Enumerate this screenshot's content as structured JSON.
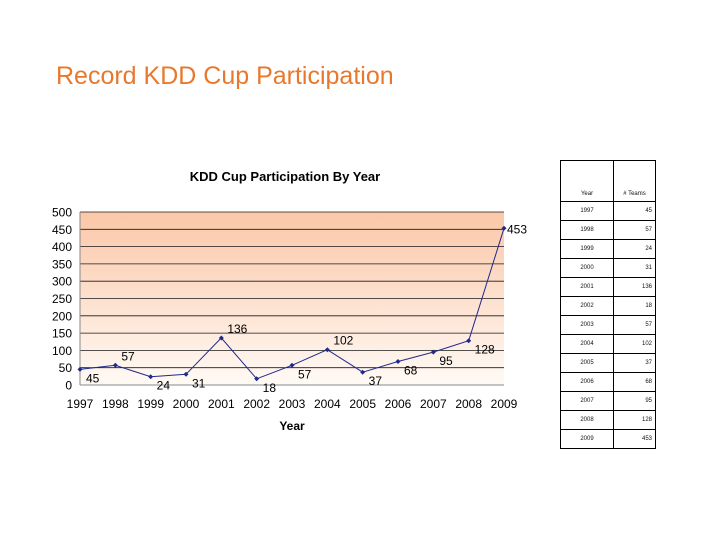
{
  "slide": {
    "title": "Record KDD Cup Participation"
  },
  "table": {
    "headers": [
      "Year",
      "# Teams"
    ],
    "rows": [
      [
        "1997",
        "45"
      ],
      [
        "1998",
        "57"
      ],
      [
        "1999",
        "24"
      ],
      [
        "2000",
        "31"
      ],
      [
        "2001",
        "136"
      ],
      [
        "2002",
        "18"
      ],
      [
        "2003",
        "57"
      ],
      [
        "2004",
        "102"
      ],
      [
        "2005",
        "37"
      ],
      [
        "2006",
        "68"
      ],
      [
        "2007",
        "95"
      ],
      [
        "2008",
        "128"
      ],
      [
        "2009",
        "453"
      ]
    ]
  },
  "colors": {
    "title": "#e8792c",
    "series": "#1f2a8c",
    "plot_top": "#fbc7a8",
    "plot_bottom": "#fffaf5"
  },
  "chart_data": {
    "type": "line",
    "title": "KDD Cup Participation By Year",
    "xlabel": "Year",
    "ylabel": "",
    "categories": [
      "1997",
      "1998",
      "1999",
      "2000",
      "2001",
      "2002",
      "2003",
      "2004",
      "2005",
      "2006",
      "2007",
      "2008",
      "2009"
    ],
    "series": [
      {
        "values": [
          45,
          57,
          24,
          31,
          136,
          18,
          57,
          102,
          37,
          68,
          95,
          128,
          453
        ]
      }
    ],
    "data_labels": [
      "45",
      "57",
      "24",
      "31",
      "136",
      "18",
      "57",
      "102",
      "37",
      "68",
      "95",
      "128",
      "453"
    ],
    "ylim": [
      0,
      500
    ],
    "yticks": [
      "0",
      "50",
      "100",
      "150",
      "200",
      "250",
      "300",
      "350",
      "400",
      "450",
      "500"
    ],
    "grid": true,
    "legend": "none",
    "gradient_background": true
  }
}
